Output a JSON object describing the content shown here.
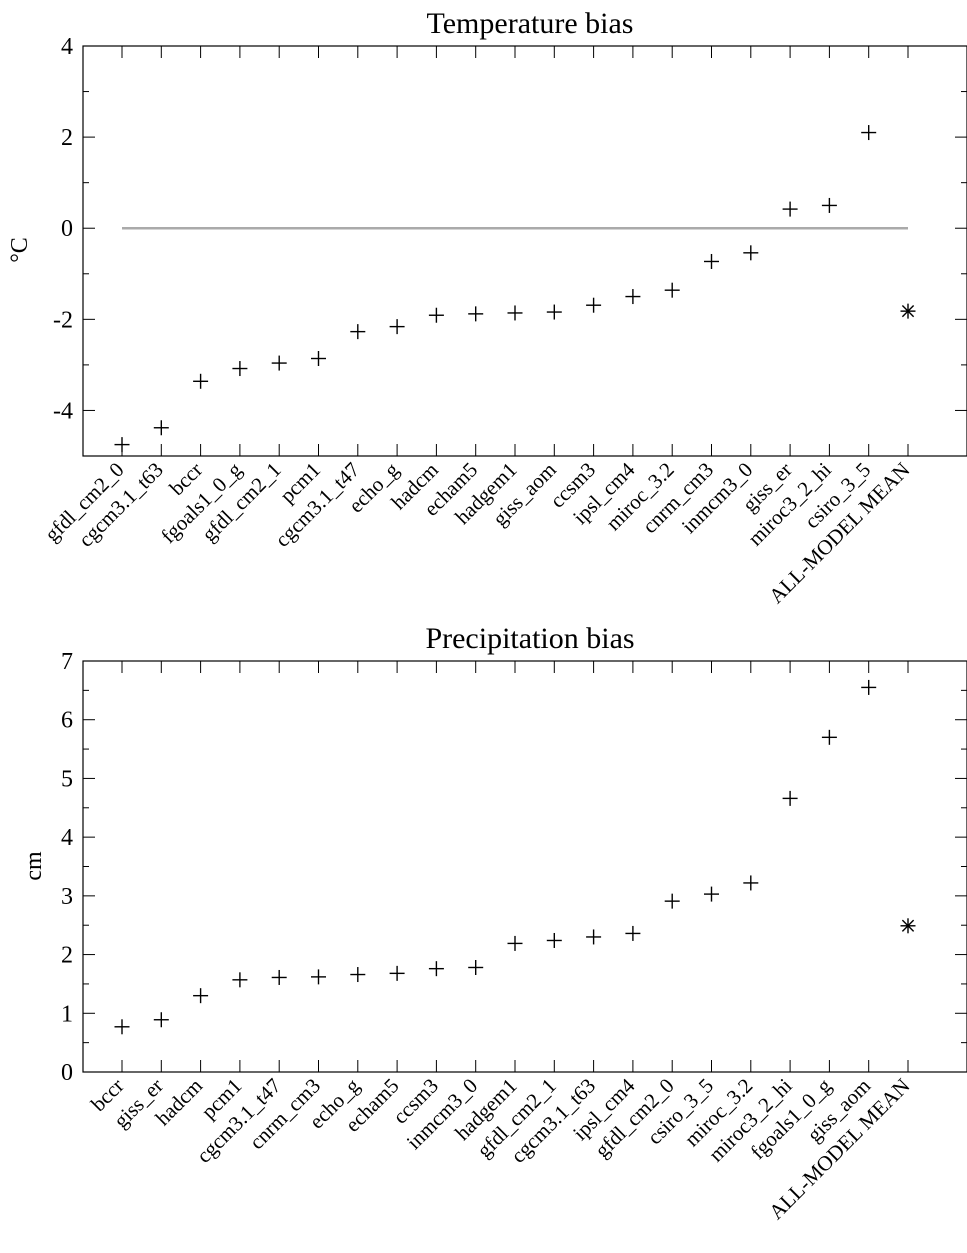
{
  "chart_data": [
    {
      "type": "scatter",
      "title": "Temperature bias",
      "ylabel": "°C",
      "xlabel": "",
      "ylim": [
        -5,
        4
      ],
      "yticks": [
        -4,
        -2,
        0,
        2,
        4
      ],
      "reference_line": 0,
      "grid": false,
      "categories": [
        "gfdl_cm2_0",
        "cgcm3.1_t63",
        "bccr",
        "fgoals1_0_g",
        "gfdl_cm2_1",
        "pcm1",
        "cgcm3.1_t47",
        "echo_g",
        "hadcm",
        "echam5",
        "hadgem1",
        "giss_aom",
        "ccsm3",
        "ipsl_cm4",
        "miroc_3.2",
        "cnrm_cm3",
        "inmcm3_0",
        "giss_er",
        "miroc3_2_hi",
        "csiro_3_5",
        "ALL-MODEL MEAN"
      ],
      "values": [
        -4.75,
        -4.38,
        -3.36,
        -3.08,
        -2.96,
        -2.86,
        -2.27,
        -2.16,
        -1.91,
        -1.88,
        -1.86,
        -1.84,
        -1.69,
        -1.5,
        -1.36,
        -0.73,
        -0.54,
        0.42,
        0.5,
        2.1,
        -1.82
      ],
      "markers": [
        "plus",
        "plus",
        "plus",
        "plus",
        "plus",
        "plus",
        "plus",
        "plus",
        "plus",
        "plus",
        "plus",
        "plus",
        "plus",
        "plus",
        "plus",
        "plus",
        "plus",
        "plus",
        "plus",
        "plus",
        "asterisk"
      ]
    },
    {
      "type": "scatter",
      "title": "Precipitation bias",
      "ylabel": "cm",
      "xlabel": "",
      "ylim": [
        0,
        7
      ],
      "yticks": [
        0,
        1,
        2,
        3,
        4,
        5,
        6,
        7
      ],
      "grid": false,
      "categories": [
        "bccr",
        "giss_er",
        "hadcm",
        "pcm1",
        "cgcm3.1_t47",
        "cnrm_cm3",
        "echo_g",
        "echam5",
        "ccsm3",
        "inmcm3_0",
        "hadgem1",
        "gfdl_cm2_1",
        "cgcm3.1_t63",
        "ipsl_cm4",
        "gfdl_cm2_0",
        "csiro_3_5",
        "miroc_3.2",
        "miroc3_2_hi",
        "fgoals1_0_g",
        "giss_aom",
        "ALL-MODEL MEAN"
      ],
      "values": [
        0.77,
        0.89,
        1.3,
        1.57,
        1.61,
        1.62,
        1.66,
        1.68,
        1.76,
        1.78,
        2.19,
        2.24,
        2.3,
        2.36,
        2.91,
        3.03,
        3.22,
        4.66,
        5.7,
        6.55,
        2.49
      ],
      "markers": [
        "plus",
        "plus",
        "plus",
        "plus",
        "plus",
        "plus",
        "plus",
        "plus",
        "plus",
        "plus",
        "plus",
        "plus",
        "plus",
        "plus",
        "plus",
        "plus",
        "plus",
        "plus",
        "plus",
        "plus",
        "asterisk"
      ]
    }
  ]
}
